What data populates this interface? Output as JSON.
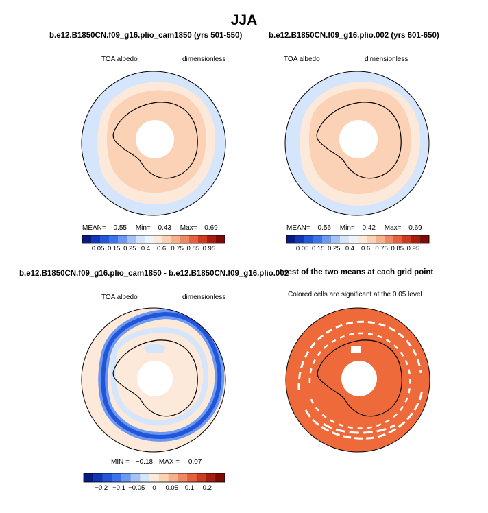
{
  "season": "JJA",
  "panels": [
    {
      "title": "b.e12.B1850CN.f09_g16.plio_cam1850 (yrs 501-550)",
      "left_label": "TOA albedo",
      "right_label": "dimensionless",
      "stats": {
        "mean_label": "MEAN=",
        "mean": "0.55",
        "min_label": "Min=",
        "min": "0.43",
        "max_label": "Max=",
        "max": "0.69"
      }
    },
    {
      "title": "b.e12.B1850CN.f09_g16.plio.002 (yrs 601-650)",
      "left_label": "TOA albedo",
      "right_label": "dimensionless",
      "stats": {
        "mean_label": "MEAN=",
        "mean": "0.56",
        "min_label": "Min=",
        "min": "0.42",
        "max_label": "Max=",
        "max": "0.69"
      }
    },
    {
      "title": "b.e12.B1850CN.f09_g16.plio_cam1850 - b.e12.B1850CN.f09_g16.plio.002",
      "left_label": "TOA albedo",
      "right_label": "dimensionless",
      "stats": {
        "min_label": "MIN =",
        "min": "−0.18",
        "max_label": "MAX =",
        "max": "0.07"
      }
    },
    {
      "title": "t-test of the two means at each grid point",
      "subtitle": "Colored cells are significant at the 0.05 level"
    }
  ],
  "colorbars": {
    "abs": {
      "labels": [
        "0.05",
        "0.15",
        "0.25",
        "0.4",
        "0.6",
        "0.75",
        "0.85",
        "0.95"
      ],
      "colors": [
        "#061a80",
        "#1036b4",
        "#2255d8",
        "#3a73ea",
        "#6b99f1",
        "#a5c1f6",
        "#d5e5fb",
        "#eef4fd",
        "#fde9da",
        "#fbd2b6",
        "#f6b08c",
        "#ee8a63",
        "#e4603e",
        "#cd3a22",
        "#a41d10",
        "#7c0b05"
      ]
    },
    "diff": {
      "labels": [
        "−0.2",
        "−0.1",
        "−0.05",
        "0",
        "0.05",
        "0.1",
        "0.2"
      ],
      "colors": [
        "#061a80",
        "#1036b4",
        "#2255d8",
        "#3a73ea",
        "#6b99f1",
        "#a5c1f6",
        "#d5e5fb",
        "#fde9da",
        "#fbd2b6",
        "#f6b08c",
        "#ee8a63",
        "#e4603e",
        "#cd3a22",
        "#a41d10",
        "#7c0b05"
      ]
    }
  },
  "chart_data": [
    {
      "type": "heatmap",
      "projection": "south polar stereographic",
      "title": "b.e12.B1850CN.f09_g16.plio_cam1850 (yrs 501-550)",
      "variable": "TOA albedo",
      "units": "dimensionless",
      "mean": 0.55,
      "min": 0.43,
      "max": 0.69,
      "levels": [
        0.05,
        0.1,
        0.15,
        0.2,
        0.25,
        0.3,
        0.35,
        0.4,
        0.5,
        0.6,
        0.7,
        0.75,
        0.8,
        0.85,
        0.9,
        0.95
      ]
    },
    {
      "type": "heatmap",
      "projection": "south polar stereographic",
      "title": "b.e12.B1850CN.f09_g16.plio.002 (yrs 601-650)",
      "variable": "TOA albedo",
      "units": "dimensionless",
      "mean": 0.56,
      "min": 0.42,
      "max": 0.69,
      "levels": [
        0.05,
        0.1,
        0.15,
        0.2,
        0.25,
        0.3,
        0.35,
        0.4,
        0.5,
        0.6,
        0.7,
        0.75,
        0.8,
        0.85,
        0.9,
        0.95
      ]
    },
    {
      "type": "heatmap",
      "projection": "south polar stereographic",
      "title": "b.e12.B1850CN.f09_g16.plio_cam1850 - b.e12.B1850CN.f09_g16.plio.002",
      "variable": "TOA albedo",
      "units": "dimensionless",
      "min": -0.18,
      "max": 0.07,
      "levels": [
        -0.2,
        -0.15,
        -0.1,
        -0.08,
        -0.05,
        -0.02,
        0,
        0.02,
        0.05,
        0.08,
        0.1,
        0.15,
        0.2
      ]
    },
    {
      "type": "heatmap",
      "projection": "south polar stereographic",
      "title": "t-test of the two means at each grid point",
      "note": "Colored cells are significant at the 0.05 level",
      "significance_level": 0.05
    }
  ]
}
